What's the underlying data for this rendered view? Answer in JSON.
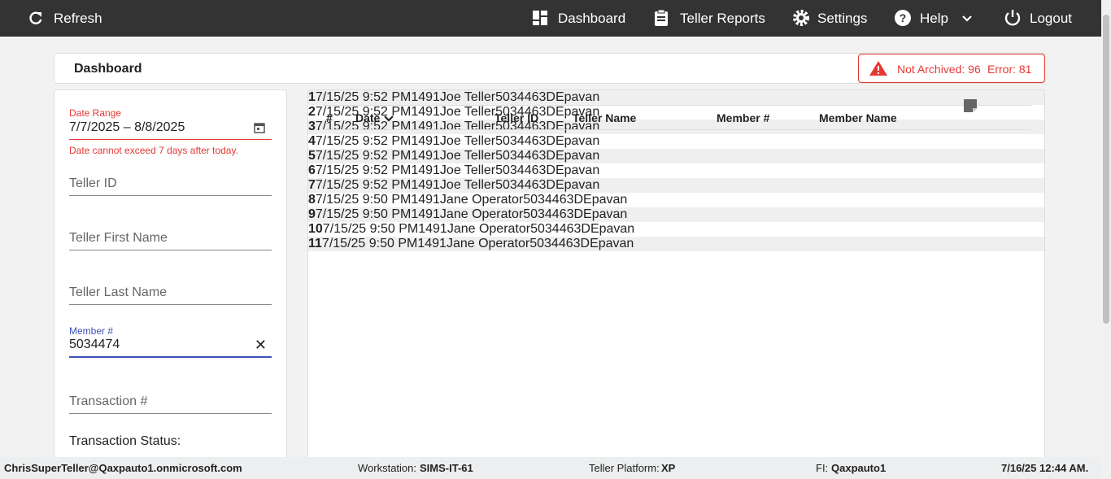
{
  "nav": {
    "refresh": "Refresh",
    "dashboard": "Dashboard",
    "teller_reports": "Teller Reports",
    "settings": "Settings",
    "help": "Help",
    "logout": "Logout"
  },
  "header": {
    "title": "Dashboard",
    "alert_not_archived": "Not Archived: 96",
    "alert_error": "Error: 81"
  },
  "filters": {
    "date_range_label": "Date Range",
    "date_range_value": "7/7/2025 – 8/8/2025",
    "date_error": "Date cannot exceed 7 days after today.",
    "teller_id": "Teller ID",
    "teller_first_name": "Teller First Name",
    "teller_last_name": "Teller Last Name",
    "member_label": "Member #",
    "member_value": "5034474",
    "transaction": "Transaction #",
    "transaction_status": "Transaction Status:"
  },
  "table": {
    "columns": [
      "#",
      "Date",
      "Teller ID",
      "Teller Name",
      "Member #",
      "Member Name"
    ],
    "rows": [
      [
        "1",
        "7/15/25 9:52 PM",
        "1491",
        "Joe Teller",
        "5034463DE",
        "pavan"
      ],
      [
        "2",
        "7/15/25 9:52 PM",
        "1491",
        "Joe Teller",
        "5034463DE",
        "pavan"
      ],
      [
        "3",
        "7/15/25 9:52 PM",
        "1491",
        "Joe Teller",
        "5034463DE",
        "pavan"
      ],
      [
        "4",
        "7/15/25 9:52 PM",
        "1491",
        "Joe Teller",
        "5034463DE",
        "pavan"
      ],
      [
        "5",
        "7/15/25 9:52 PM",
        "1491",
        "Joe Teller",
        "5034463DE",
        "pavan"
      ],
      [
        "6",
        "7/15/25 9:52 PM",
        "1491",
        "Joe Teller",
        "5034463DE",
        "pavan"
      ],
      [
        "7",
        "7/15/25 9:52 PM",
        "1491",
        "Joe Teller",
        "5034463DE",
        "pavan"
      ],
      [
        "8",
        "7/15/25 9:50 PM",
        "1491",
        "Jane Operator",
        "5034463DE",
        "pavan"
      ],
      [
        "9",
        "7/15/25 9:50 PM",
        "1491",
        "Jane Operator",
        "5034463DE",
        "pavan"
      ],
      [
        "10",
        "7/15/25 9:50 PM",
        "1491",
        "Jane Operator",
        "5034463DE",
        "pavan"
      ],
      [
        "11",
        "7/15/25 9:50 PM",
        "1491",
        "Jane Operator",
        "5034463DE",
        "pavan"
      ]
    ]
  },
  "footer": {
    "user": "ChrisSuperTeller@Qaxpauto1.onmicrosoft.com",
    "workstation_label": "Workstation:",
    "workstation": "SIMS-IT-61",
    "platform_label": "Teller Platform:",
    "platform": "XP",
    "fi_label": "FI:",
    "fi": "Qaxpauto1",
    "time": "7/16/25 12:44 AM."
  }
}
